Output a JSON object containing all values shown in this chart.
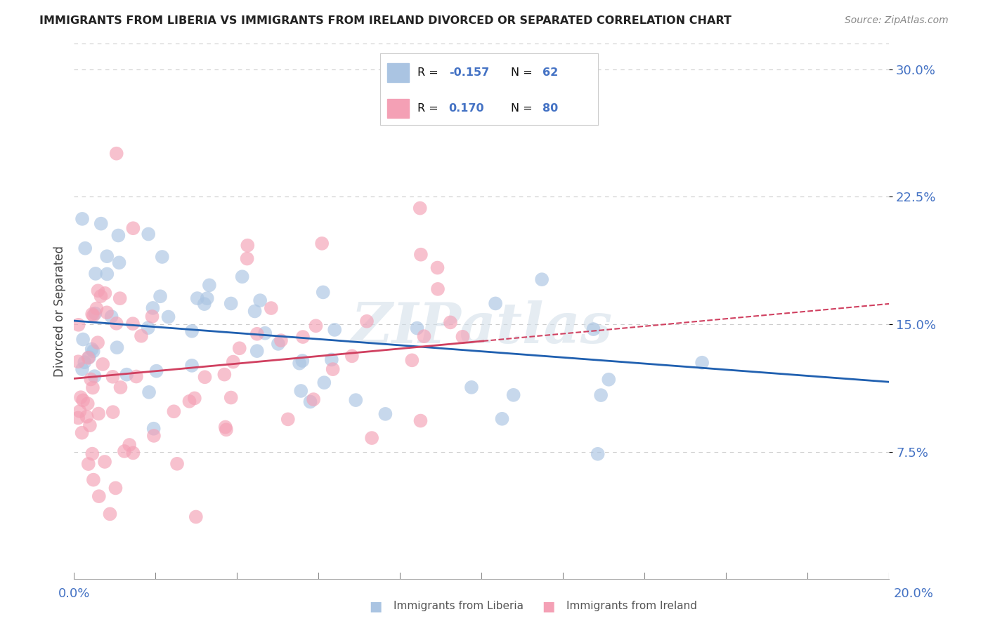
{
  "title": "IMMIGRANTS FROM LIBERIA VS IMMIGRANTS FROM IRELAND DIVORCED OR SEPARATED CORRELATION CHART",
  "source": "Source: ZipAtlas.com",
  "ylabel": "Divorced or Separated",
  "xlim": [
    0.0,
    0.2
  ],
  "ylim": [
    0.0,
    0.315
  ],
  "yticks": [
    0.075,
    0.15,
    0.225,
    0.3
  ],
  "ytick_labels": [
    "7.5%",
    "15.0%",
    "22.5%",
    "30.0%"
  ],
  "liberia": {
    "name": "Immigrants from Liberia",
    "R": -0.157,
    "N": 62,
    "color": "#aac4e2",
    "line_color": "#2060b0",
    "line_style": "solid",
    "intercept": 0.152,
    "slope": -0.18
  },
  "ireland": {
    "name": "Immigrants from Ireland",
    "R": 0.17,
    "N": 80,
    "color": "#f4a0b5",
    "line_color": "#d04060",
    "line_style": "dashed",
    "intercept": 0.118,
    "slope": 0.22
  },
  "watermark": "ZIPatlas",
  "title_color": "#222222",
  "axis_label_color": "#4472c4",
  "tick_color": "#4472c4",
  "background_color": "#ffffff",
  "grid_color": "#cccccc",
  "seed_liberia": 101,
  "seed_ireland": 202
}
